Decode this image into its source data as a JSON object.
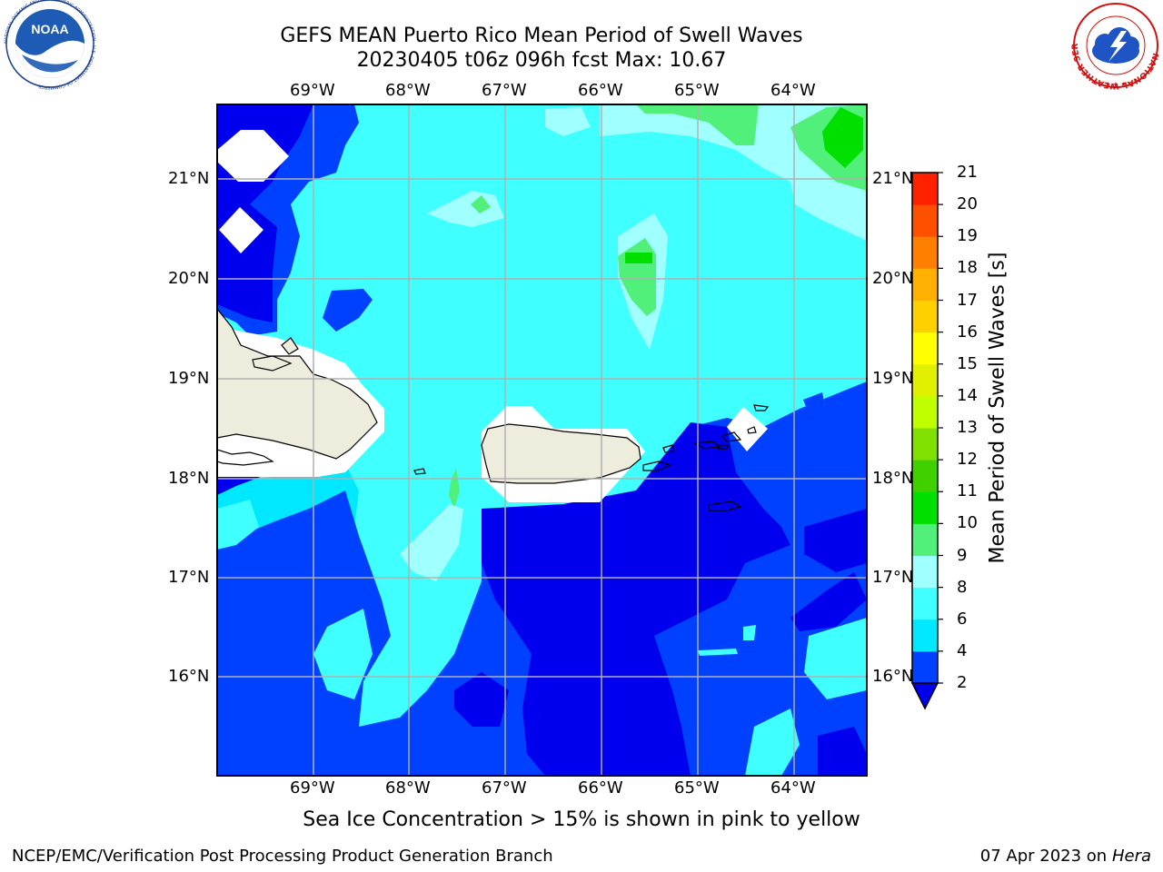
{
  "header": {
    "title_line1": "GEFS MEAN Puerto Rico Mean Period of Swell Waves",
    "title_line2": "20230405 t06z 096h fcst   Max: 10.67"
  },
  "logos": {
    "left": "noaa-logo",
    "left_text": "NOAA",
    "left_ring_text": "NATIONAL OCEANIC AND ATMOSPHERIC ADMINISTRATION · U.S. DEPARTMENT OF COMMERCE",
    "right": "nws-logo",
    "right_ring_text": "NATIONAL WEATHER SERVICE"
  },
  "map": {
    "lon_ticks": [
      "69°W",
      "68°W",
      "67°W",
      "66°W",
      "65°W",
      "64°W"
    ],
    "lat_ticks": [
      "21°N",
      "20°N",
      "19°N",
      "18°N",
      "17°N",
      "16°N"
    ],
    "land_color": "#eeecdc",
    "grid_color": "#b0b0b0"
  },
  "colorbar": {
    "title": "Mean Period of Swell Waves [s]",
    "levels": [
      "2",
      "4",
      "6",
      "8",
      "9",
      "10",
      "11",
      "12",
      "13",
      "14",
      "15",
      "16",
      "17",
      "18",
      "19",
      "20",
      "21"
    ],
    "colors": [
      "#0040ff",
      "#00e8ff",
      "#40ffff",
      "#a0ffff",
      "#50f07a",
      "#00e000",
      "#40d000",
      "#80e000",
      "#c0ff00",
      "#e0f000",
      "#ffff00",
      "#ffd000",
      "#ffb000",
      "#ff8000",
      "#ff5000",
      "#ff2000"
    ],
    "under_color": "#0000ee"
  },
  "note": "Sea Ice Concentration > 15% is shown in pink to yellow",
  "footer": {
    "left": "NCEP/EMC/Verification Post Processing Product Generation Branch",
    "date": "07 Apr 2023 on",
    "machine": "Hera"
  }
}
